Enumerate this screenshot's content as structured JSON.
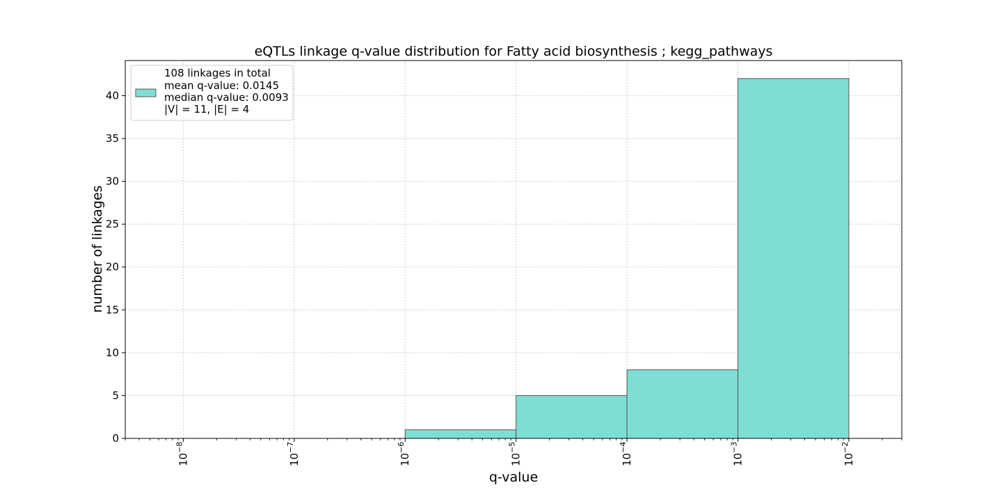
{
  "chart_data": {
    "type": "bar",
    "title": "eQTLs linkage q-value distribution for Fatty acid biosynthesis ; kegg_pathways",
    "xlabel": "q-value",
    "ylabel": "number of linkages",
    "x_scale": "log",
    "xlim": [
      3e-09,
      0.03
    ],
    "ylim": [
      0,
      44.1
    ],
    "grid": true,
    "legend_position": "top-left",
    "bar_color": "#7fded4",
    "edge_color": "#555555",
    "x_ticks": [
      {
        "value": 1e-08,
        "base": "10",
        "exp": "−8"
      },
      {
        "value": 1e-07,
        "base": "10",
        "exp": "−7"
      },
      {
        "value": 1e-06,
        "base": "10",
        "exp": "−6"
      },
      {
        "value": 1e-05,
        "base": "10",
        "exp": "−5"
      },
      {
        "value": 0.0001,
        "base": "10",
        "exp": "−4"
      },
      {
        "value": 0.001,
        "base": "10",
        "exp": "−3"
      },
      {
        "value": 0.01,
        "base": "10",
        "exp": "−2"
      }
    ],
    "y_ticks": [
      "0",
      "5",
      "10",
      "15",
      "20",
      "25",
      "30",
      "35",
      "40"
    ],
    "bins": [
      {
        "x_start": 1e-08,
        "x_end": 1e-07,
        "count": 0
      },
      {
        "x_start": 1e-07,
        "x_end": 1e-06,
        "count": 0
      },
      {
        "x_start": 1e-06,
        "x_end": 1e-05,
        "count": 1
      },
      {
        "x_start": 1e-05,
        "x_end": 0.0001,
        "count": 5
      },
      {
        "x_start": 0.0001,
        "x_end": 0.001,
        "count": 8
      },
      {
        "x_start": 0.001,
        "x_end": 0.01,
        "count": 42
      }
    ],
    "legend": {
      "lines": [
        "108 linkages in total",
        "mean q-value: 0.0145",
        "median q-value: 0.0093",
        "|V| = 11, |E| = 4"
      ]
    }
  }
}
